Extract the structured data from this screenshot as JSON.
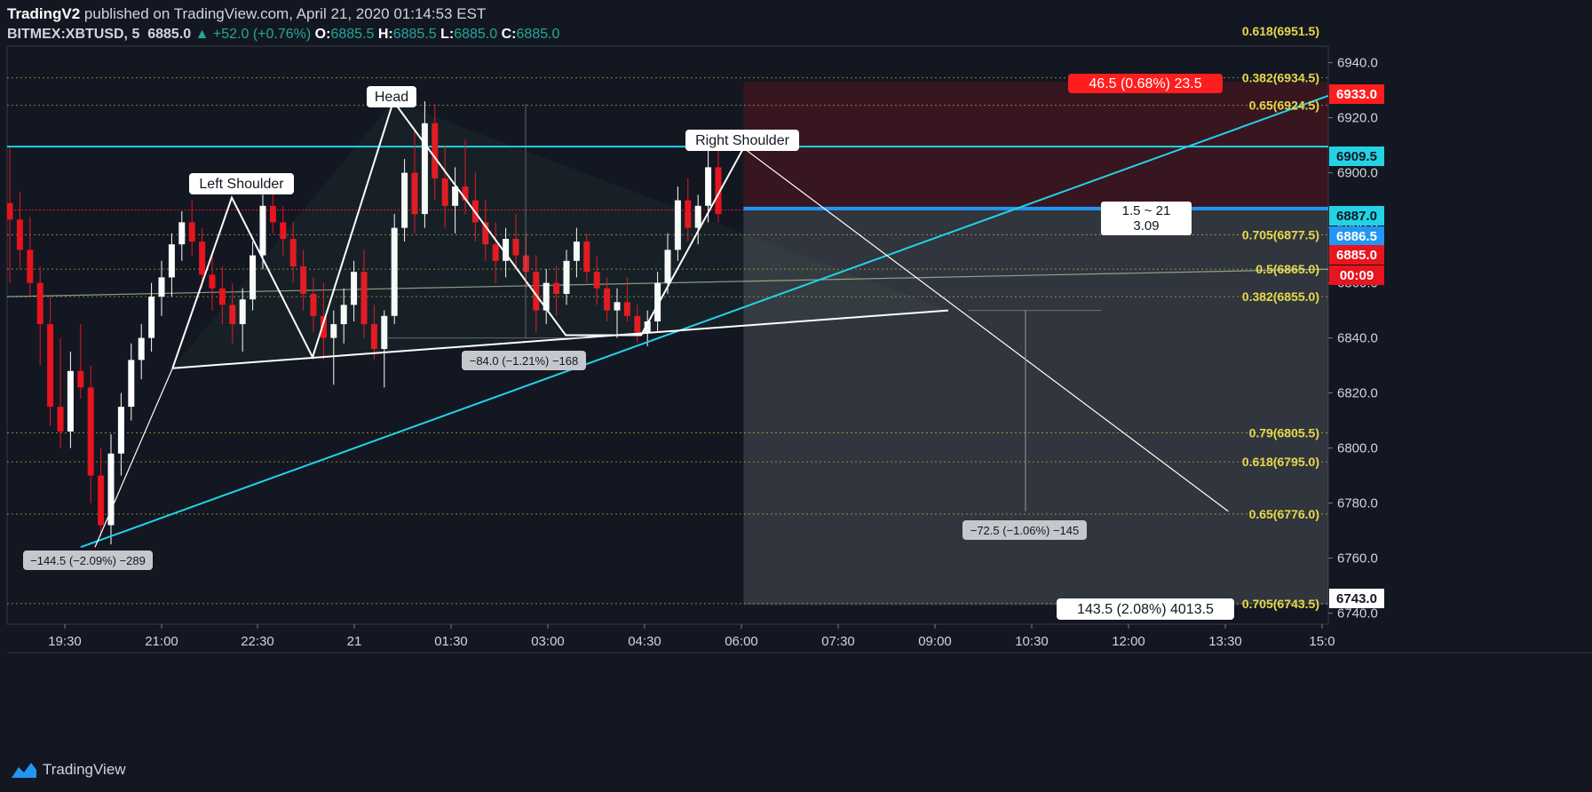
{
  "header": {
    "author": "TradingV2",
    "published": "published on TradingView.com, April 21, 2020 01:14:53 EST",
    "symbol": "BITMEX:XBTUSD, 5",
    "last": "6885.0",
    "change": "+52.0 (+0.76%)",
    "o_label": "O:",
    "o": "6885.5",
    "h_label": "H:",
    "h": "6885.5",
    "l_label": "L:",
    "l": "6885.0",
    "c_label": "C:",
    "c": "6885.0"
  },
  "brand": {
    "name": "TradingView"
  },
  "colors": {
    "bg": "#131722",
    "up": "#ffffff",
    "down": "#e8141e",
    "cyan": "#22d3e6",
    "fib": "#e6d84b",
    "pattern": "#ffffff",
    "stopRed": "#ff1e1e",
    "blueLine": "#2196f3"
  },
  "chart_data": {
    "type": "candlestick",
    "symbol": "BITMEX:XBTUSD",
    "interval": "5",
    "x_ticks": [
      "19:30",
      "21:00",
      "22:30",
      "21",
      "01:30",
      "03:00",
      "04:30",
      "06:00",
      "07:30",
      "09:00",
      "10:30",
      "12:00",
      "13:30",
      "15:0"
    ],
    "y_ticks": [
      6740,
      6760,
      6780,
      6800,
      6820,
      6840,
      6860,
      6880,
      6900,
      6920,
      6940
    ],
    "ylim": [
      6736,
      6946
    ],
    "price_labels": [
      {
        "text": "6933.0",
        "price": 6933.0,
        "bg": "#ff1e1e",
        "fg": "#ffffff"
      },
      {
        "text": "6909.5",
        "price": 6909.5,
        "bg": "#22d3e6",
        "fg": "#131722"
      },
      {
        "text": "6887.0",
        "price": 6887.0,
        "bg": "#22d3e6",
        "fg": "#131722"
      },
      {
        "text": "6886.5",
        "price": 6886.5,
        "bg": "#2196f3",
        "fg": "#ffffff"
      },
      {
        "text": "6885.0",
        "price": 6885.0,
        "bg": "#e8141e",
        "fg": "#ffffff"
      },
      {
        "text": "00:09",
        "price": 6874.5,
        "bg": "#e8141e",
        "fg": "#ffffff"
      },
      {
        "text": "6743.0",
        "price": 6743.0,
        "bg": "#ffffff",
        "fg": "#131722"
      }
    ],
    "fib_levels": [
      {
        "label": "0.618(6951.5)",
        "price": 6951.5
      },
      {
        "label": "0.382(6934.5)",
        "price": 6934.5
      },
      {
        "label": "0.65(6924.5)",
        "price": 6924.5
      },
      {
        "label": "0.705(6877.5)",
        "price": 6877.5
      },
      {
        "label": "0.5(6865.0)",
        "price": 6865.0
      },
      {
        "label": "0.382(6855.0)",
        "price": 6855.0
      },
      {
        "label": "0.79(6805.5)",
        "price": 6805.5
      },
      {
        "label": "0.618(6795.0)",
        "price": 6795.0
      },
      {
        "label": "0.65(6776.0)",
        "price": 6776.0
      },
      {
        "label": "0.705(6743.5)",
        "price": 6743.5
      }
    ],
    "annotations": [
      {
        "text": "Left Shoulder",
        "time": "22:00",
        "price": 6891
      },
      {
        "text": "Head",
        "time": "00:35",
        "price": 6926
      },
      {
        "text": "Right Shoulder",
        "time": "06:00",
        "price": 6909
      },
      {
        "text": "−144.5 (−2.09%) −289",
        "time": "20:00",
        "price": 6764
      },
      {
        "text": "−84.0 (−1.21%) −168",
        "time": "02:55",
        "price": 6840
      },
      {
        "text": "−72.5 (−1.06%) −145",
        "time": "10:25",
        "price": 6776
      },
      {
        "text": "46.5 (0.68%) 23.5",
        "time": "11:30",
        "price": 6933
      },
      {
        "text": "1.5 ~ 21",
        "time": "11:30",
        "price": 6889
      },
      {
        "text": "3.09",
        "time": "11:30",
        "price": 6883
      },
      {
        "text": "143.5 (2.08%) 4013.5",
        "time": "11:30",
        "price": 6743
      }
    ],
    "pattern_points": [
      {
        "time": "21:10",
        "price": 6829
      },
      {
        "time": "22:05",
        "price": 6891
      },
      {
        "time": "23:20",
        "price": 6833
      },
      {
        "time": "00:35",
        "price": 6926
      },
      {
        "time": "03:15",
        "price": 6841
      },
      {
        "time": "04:25",
        "price": 6841
      },
      {
        "time": "06:00",
        "price": 6909
      },
      {
        "time": "09:10",
        "price": 6850
      }
    ],
    "projection_end": {
      "time": "13:30",
      "price": 6777
    },
    "neckline": [
      {
        "time": "21:10",
        "price": 6829
      },
      {
        "time": "09:10",
        "price": 6850
      }
    ],
    "up_trendline": [
      {
        "time": "19:35",
        "price": 6764
      },
      {
        "time": "15:00",
        "price": 6926
      }
    ],
    "horizontal_lines": [
      {
        "price": 6909.5,
        "color": "#22d3e6"
      },
      {
        "price": 6887.0,
        "color": "#2196f3"
      },
      {
        "price": 6886.5,
        "color": "#e8141e"
      }
    ],
    "ohlc": [
      [
        6889,
        6909,
        6860,
        6883
      ],
      [
        6883,
        6893,
        6865,
        6872
      ],
      [
        6872,
        6884,
        6855,
        6860
      ],
      [
        6860,
        6866,
        6830,
        6845
      ],
      [
        6845,
        6855,
        6808,
        6815
      ],
      [
        6815,
        6840,
        6800,
        6806
      ],
      [
        6806,
        6835,
        6800,
        6828
      ],
      [
        6828,
        6845,
        6818,
        6822
      ],
      [
        6822,
        6830,
        6780,
        6790
      ],
      [
        6790,
        6800,
        6768,
        6772
      ],
      [
        6772,
        6805,
        6765,
        6798
      ],
      [
        6798,
        6820,
        6790,
        6815
      ],
      [
        6815,
        6838,
        6810,
        6832
      ],
      [
        6832,
        6845,
        6825,
        6840
      ],
      [
        6840,
        6860,
        6835,
        6855
      ],
      [
        6855,
        6868,
        6848,
        6862
      ],
      [
        6862,
        6878,
        6855,
        6874
      ],
      [
        6874,
        6886,
        6868,
        6882
      ],
      [
        6882,
        6890,
        6870,
        6875
      ],
      [
        6875,
        6880,
        6858,
        6863
      ],
      [
        6863,
        6870,
        6850,
        6858
      ],
      [
        6858,
        6866,
        6845,
        6852
      ],
      [
        6852,
        6860,
        6838,
        6845
      ],
      [
        6845,
        6858,
        6835,
        6854
      ],
      [
        6854,
        6875,
        6850,
        6870
      ],
      [
        6870,
        6892,
        6865,
        6888
      ],
      [
        6888,
        6893,
        6878,
        6882
      ],
      [
        6882,
        6888,
        6870,
        6876
      ],
      [
        6876,
        6882,
        6860,
        6866
      ],
      [
        6866,
        6872,
        6850,
        6856
      ],
      [
        6856,
        6862,
        6842,
        6848
      ],
      [
        6848,
        6860,
        6832,
        6840
      ],
      [
        6840,
        6850,
        6823,
        6845
      ],
      [
        6845,
        6858,
        6838,
        6852
      ],
      [
        6852,
        6868,
        6846,
        6864
      ],
      [
        6864,
        6872,
        6840,
        6845
      ],
      [
        6845,
        6852,
        6832,
        6836
      ],
      [
        6836,
        6850,
        6822,
        6848
      ],
      [
        6848,
        6885,
        6845,
        6880
      ],
      [
        6880,
        6905,
        6875,
        6900
      ],
      [
        6900,
        6915,
        6878,
        6885
      ],
      [
        6885,
        6926,
        6880,
        6918
      ],
      [
        6918,
        6925,
        6890,
        6898
      ],
      [
        6898,
        6910,
        6880,
        6888
      ],
      [
        6888,
        6902,
        6878,
        6895
      ],
      [
        6895,
        6912,
        6885,
        6890
      ],
      [
        6890,
        6900,
        6875,
        6882
      ],
      [
        6882,
        6890,
        6868,
        6874
      ],
      [
        6874,
        6882,
        6860,
        6868
      ],
      [
        6868,
        6880,
        6862,
        6876
      ],
      [
        6876,
        6885,
        6866,
        6870
      ],
      [
        6870,
        6878,
        6858,
        6864
      ],
      [
        6864,
        6870,
        6842,
        6850
      ],
      [
        6850,
        6865,
        6845,
        6860
      ],
      [
        6860,
        6866,
        6848,
        6856
      ],
      [
        6856,
        6872,
        6852,
        6868
      ],
      [
        6868,
        6880,
        6862,
        6875
      ],
      [
        6875,
        6878,
        6860,
        6864
      ],
      [
        6864,
        6870,
        6852,
        6858
      ],
      [
        6858,
        6862,
        6846,
        6850
      ],
      [
        6850,
        6858,
        6840,
        6853
      ],
      [
        6853,
        6862,
        6846,
        6848
      ],
      [
        6848,
        6852,
        6838,
        6842
      ],
      [
        6842,
        6850,
        6837,
        6846
      ],
      [
        6846,
        6864,
        6842,
        6860
      ],
      [
        6860,
        6878,
        6856,
        6872
      ],
      [
        6872,
        6895,
        6868,
        6890
      ],
      [
        6890,
        6898,
        6875,
        6880
      ],
      [
        6880,
        6892,
        6874,
        6888
      ],
      [
        6888,
        6909,
        6882,
        6902
      ],
      [
        6902,
        6908,
        6882,
        6885
      ]
    ]
  }
}
